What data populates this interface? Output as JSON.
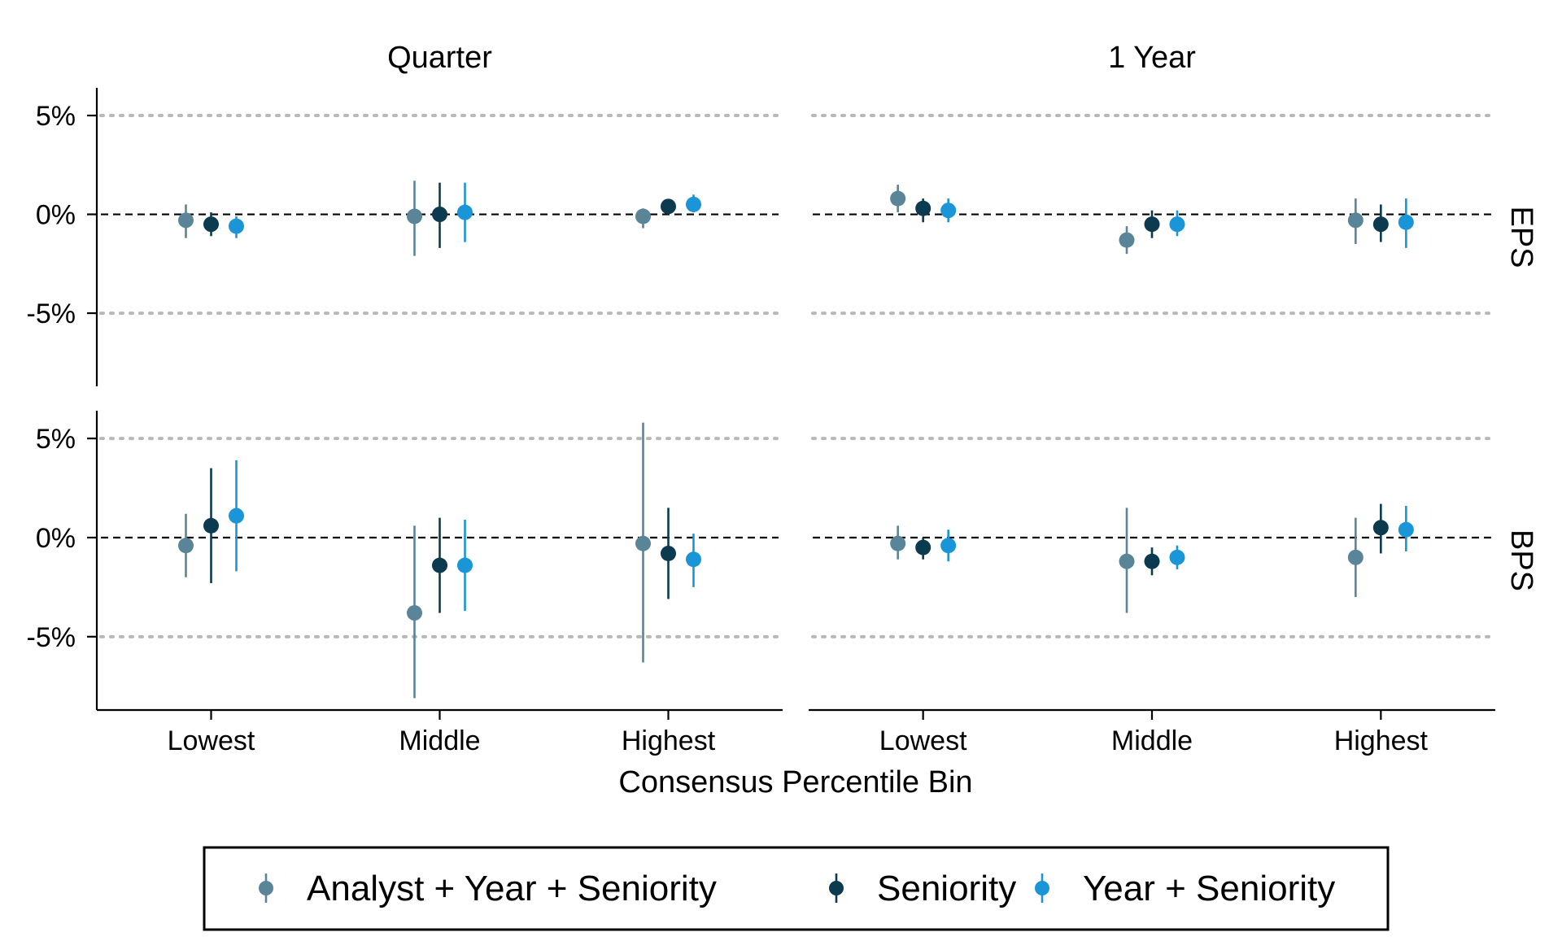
{
  "chart_data": {
    "type": "scatter",
    "subtype": "point-range (coefficient estimates with intervals), faceted",
    "columns": [
      "Quarter",
      "1 Year"
    ],
    "rows": [
      "EPS",
      "BPS"
    ],
    "categories": [
      "Lowest",
      "Middle",
      "Highest"
    ],
    "xlabel": "Consensus Percentile Bin",
    "ylabel": "",
    "y_ticks": [
      "5%",
      "0%",
      "-5%"
    ],
    "y_tick_values": [
      5,
      0,
      -5
    ],
    "ylim": [
      -8.7,
      6.4
    ],
    "grid": "dotted horizontal at ±5%",
    "reference_line": "dashed at 0%",
    "legend_position": "bottom",
    "series": [
      {
        "name": "Analyst + Year + Seniority",
        "color": "#5a8497"
      },
      {
        "name": "Seniority",
        "color": "#0c3a4f"
      },
      {
        "name": "Year + Seniority",
        "color": "#1a95d8"
      }
    ],
    "panels": [
      {
        "column": "Quarter",
        "row": "EPS",
        "points": [
          [
            {
              "y": -0.3,
              "lo": -1.2,
              "hi": 0.5
            },
            {
              "y": -0.5,
              "lo": -1.1,
              "hi": 0.1
            },
            {
              "y": -0.6,
              "lo": -1.2,
              "hi": -0.1
            }
          ],
          [
            {
              "y": -0.1,
              "lo": -2.1,
              "hi": 1.7
            },
            {
              "y": 0.0,
              "lo": -1.7,
              "hi": 1.6
            },
            {
              "y": 0.1,
              "lo": -1.4,
              "hi": 1.6
            }
          ],
          [
            {
              "y": -0.1,
              "lo": -0.7,
              "hi": 0.3
            },
            {
              "y": 0.4,
              "lo": 0.0,
              "hi": 0.7
            },
            {
              "y": 0.5,
              "lo": 0.1,
              "hi": 1.0
            }
          ]
        ]
      },
      {
        "column": "1 Year",
        "row": "EPS",
        "points": [
          [
            {
              "y": 0.8,
              "lo": 0.1,
              "hi": 1.5
            },
            {
              "y": 0.3,
              "lo": -0.4,
              "hi": 0.8
            },
            {
              "y": 0.2,
              "lo": -0.4,
              "hi": 0.8
            }
          ],
          [
            {
              "y": -1.3,
              "lo": -2.0,
              "hi": -0.6
            },
            {
              "y": -0.5,
              "lo": -1.2,
              "hi": 0.2
            },
            {
              "y": -0.5,
              "lo": -1.1,
              "hi": 0.2
            }
          ],
          [
            {
              "y": -0.3,
              "lo": -1.5,
              "hi": 0.8
            },
            {
              "y": -0.5,
              "lo": -1.4,
              "hi": 0.5
            },
            {
              "y": -0.4,
              "lo": -1.7,
              "hi": 0.8
            }
          ]
        ]
      },
      {
        "column": "Quarter",
        "row": "BPS",
        "points": [
          [
            {
              "y": -0.4,
              "lo": -2.0,
              "hi": 1.2
            },
            {
              "y": 0.6,
              "lo": -2.3,
              "hi": 3.5
            },
            {
              "y": 1.1,
              "lo": -1.7,
              "hi": 3.9
            }
          ],
          [
            {
              "y": -3.8,
              "lo": -8.1,
              "hi": 0.6
            },
            {
              "y": -1.4,
              "lo": -3.8,
              "hi": 1.0
            },
            {
              "y": -1.4,
              "lo": -3.7,
              "hi": 0.9
            }
          ],
          [
            {
              "y": -0.3,
              "lo": -6.3,
              "hi": 5.8
            },
            {
              "y": -0.8,
              "lo": -3.1,
              "hi": 1.5
            },
            {
              "y": -1.1,
              "lo": -2.5,
              "hi": 0.2
            }
          ]
        ]
      },
      {
        "column": "1 Year",
        "row": "BPS",
        "points": [
          [
            {
              "y": -0.3,
              "lo": -1.1,
              "hi": 0.6
            },
            {
              "y": -0.5,
              "lo": -1.1,
              "hi": 0.0
            },
            {
              "y": -0.4,
              "lo": -1.2,
              "hi": 0.4
            }
          ],
          [
            {
              "y": -1.2,
              "lo": -3.8,
              "hi": 1.5
            },
            {
              "y": -1.2,
              "lo": -1.9,
              "hi": -0.5
            },
            {
              "y": -1.0,
              "lo": -1.6,
              "hi": -0.4
            }
          ],
          [
            {
              "y": -1.0,
              "lo": -3.0,
              "hi": 1.0
            },
            {
              "y": 0.5,
              "lo": -0.8,
              "hi": 1.7
            },
            {
              "y": 0.4,
              "lo": -0.7,
              "hi": 1.6
            }
          ]
        ]
      }
    ]
  }
}
